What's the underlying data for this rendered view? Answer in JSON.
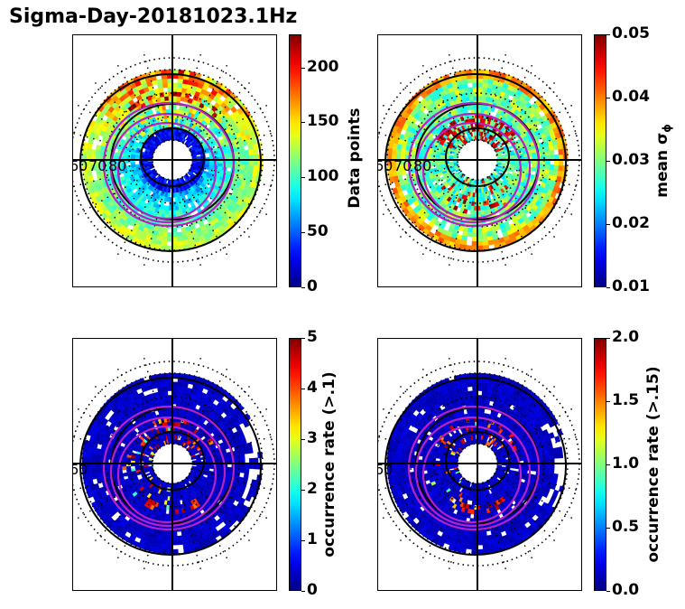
{
  "figure": {
    "title": "Sigma-Day-20181023.1Hz"
  },
  "chart_data": [
    {
      "type": "heatmap",
      "projection": "polar",
      "radial_tick_labels": [
        "60",
        "70",
        "80"
      ],
      "colorbar": {
        "label": "Data points",
        "ticks": [
          "0",
          "50",
          "100",
          "150",
          "200"
        ],
        "range": [
          0,
          230
        ]
      }
    },
    {
      "type": "heatmap",
      "projection": "polar",
      "radial_tick_labels": [
        "60",
        "70",
        "80"
      ],
      "colorbar": {
        "label": "mean σ",
        "label_subscript": "ϕ",
        "ticks": [
          "0.01",
          "0.02",
          "0.03",
          "0.04",
          "0.05"
        ],
        "range": [
          0.01,
          0.05
        ]
      }
    },
    {
      "type": "heatmap",
      "projection": "polar",
      "radial_tick_labels": [
        "60"
      ],
      "colorbar": {
        "label": "occurrence rate (>.1)",
        "ticks": [
          "0",
          "1",
          "2",
          "3",
          "4",
          "5"
        ],
        "range": [
          0,
          5
        ]
      }
    },
    {
      "type": "heatmap",
      "projection": "polar",
      "radial_tick_labels": [
        "60"
      ],
      "colorbar": {
        "label": "occurrence rate (>.15)",
        "ticks": [
          "0.0",
          "0.5",
          "1.0",
          "1.5",
          "2.0"
        ],
        "range": [
          0,
          2
        ]
      }
    }
  ],
  "colormap": "jet"
}
